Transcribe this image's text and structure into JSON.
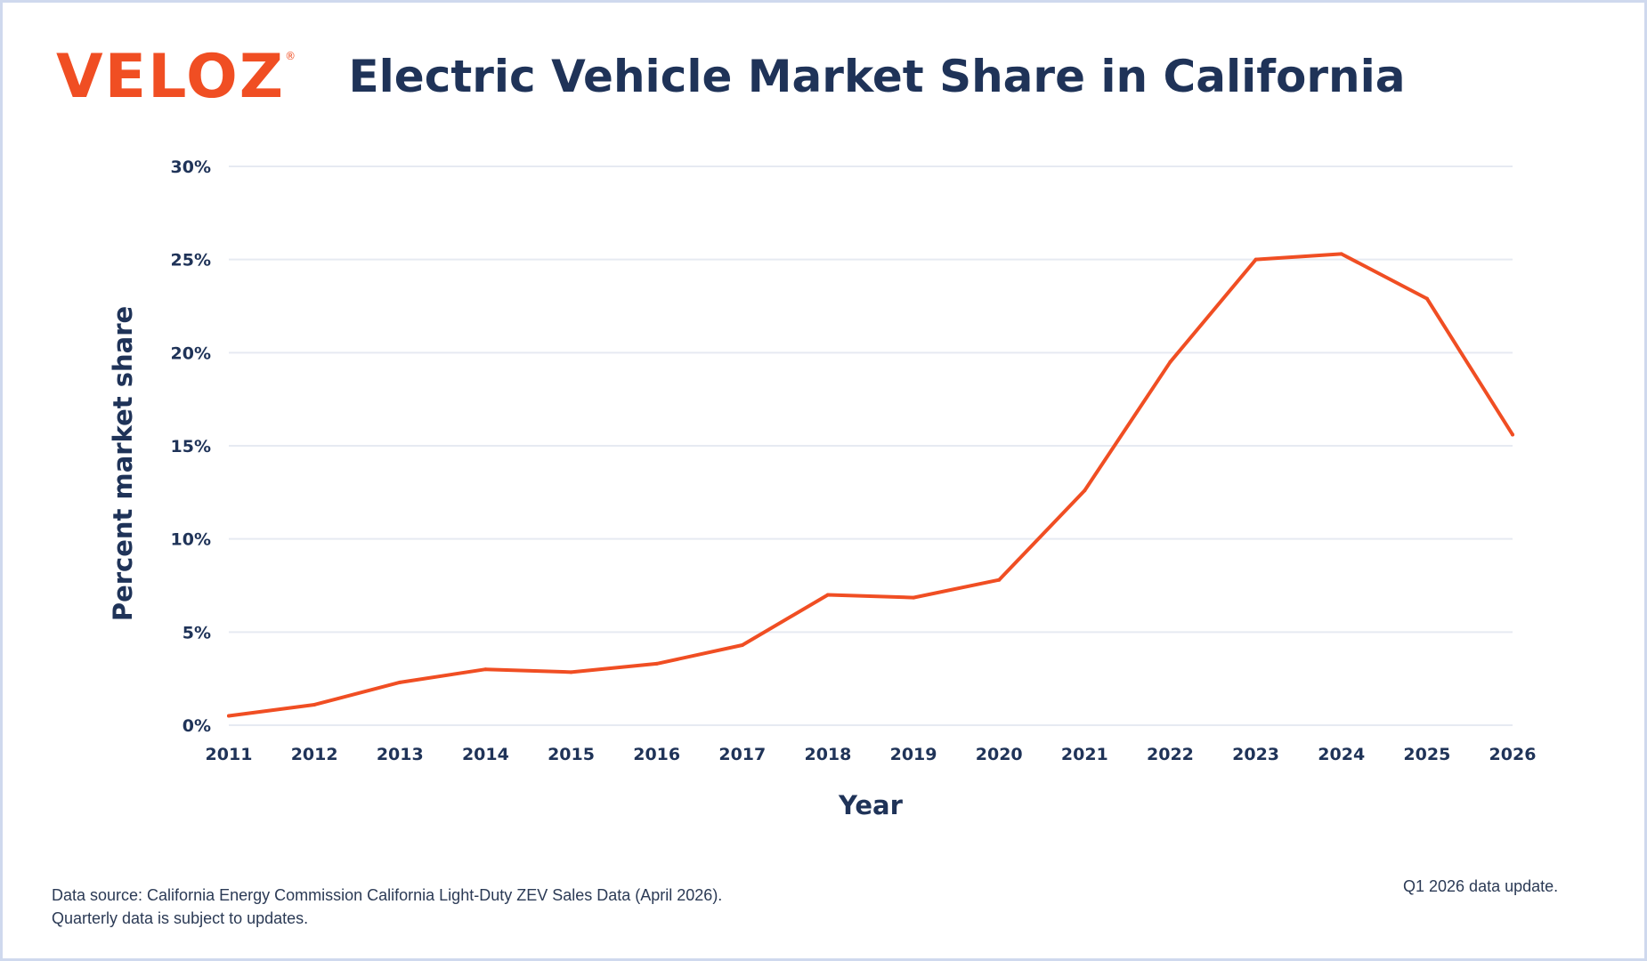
{
  "logo": {
    "text": "VELOZ",
    "mark": "®"
  },
  "footer": {
    "source_line1": "Data source: California Energy Commission California Light-Duty ZEV Sales Data (April 2026).",
    "source_line2": "Quarterly data is subject to updates.",
    "update_note": "Q1 2026 data update."
  },
  "colors": {
    "line": "#f04e23",
    "text": "#1f3358",
    "grid": "#e6eaf2",
    "border": "#cfd9ee"
  },
  "chart_data": {
    "type": "line",
    "title": "Electric Vehicle Market Share in California",
    "xlabel": "Year",
    "ylabel": "Percent market share",
    "x": [
      2011,
      2012,
      2013,
      2014,
      2015,
      2016,
      2017,
      2018,
      2019,
      2020,
      2021,
      2022,
      2023,
      2024,
      2025,
      2026
    ],
    "series": [
      {
        "values": [
          0.5,
          1.1,
          2.3,
          3.0,
          2.85,
          3.3,
          4.3,
          7.0,
          6.85,
          7.8,
          12.6,
          19.5,
          25.0,
          25.3,
          22.9,
          15.6
        ]
      }
    ],
    "ylim": [
      0,
      30
    ],
    "yticks": [
      0,
      5,
      10,
      15,
      20,
      25,
      30
    ],
    "ytick_labels": [
      "0%",
      "5%",
      "10%",
      "15%",
      "20%",
      "25%",
      "30%"
    ],
    "xtick_labels": [
      "2011",
      "2012",
      "2013",
      "2014",
      "2015",
      "2016",
      "2017",
      "2018",
      "2019",
      "2020",
      "2021",
      "2022",
      "2023",
      "2024",
      "2025",
      "2026"
    ],
    "grid": true,
    "legend": "none"
  }
}
